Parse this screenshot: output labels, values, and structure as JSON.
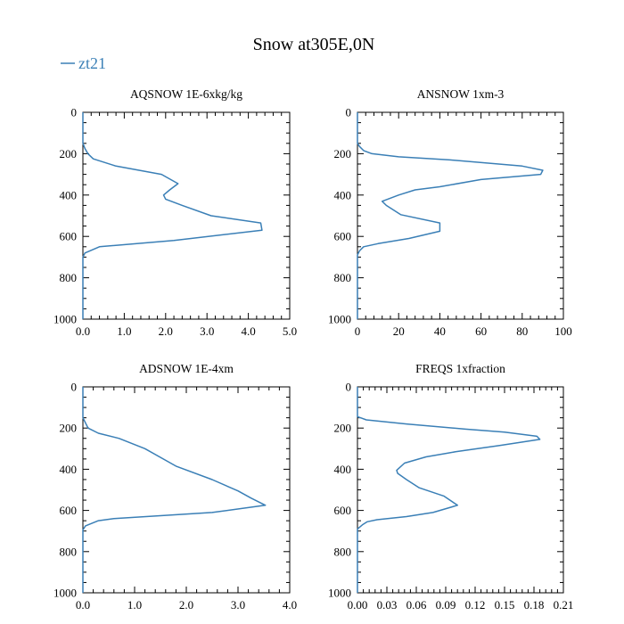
{
  "chart_data": {
    "title": "Snow at305E,0N",
    "series_name": "zt21",
    "line_color": "#3a7fb6",
    "axis_color": "#000000",
    "panels": [
      {
        "type": "line",
        "title": "AQSNOW  1E-6xkg/kg",
        "xlim": [
          0,
          5
        ],
        "xticks": [
          "0.0",
          "1.0",
          "2.0",
          "3.0",
          "4.0",
          "5.0"
        ],
        "ylim": [
          0,
          1000
        ],
        "yticks": [
          "0",
          "200",
          "400",
          "600",
          "800",
          "1000"
        ],
        "series": [
          {
            "name": "zt21",
            "points": [
              [
                0,
                0
              ],
              [
                0,
                150
              ],
              [
                0.05,
                175
              ],
              [
                0.12,
                200
              ],
              [
                0.25,
                225
              ],
              [
                0.8,
                260
              ],
              [
                1.9,
                300
              ],
              [
                2.3,
                345
              ],
              [
                2.1,
                375
              ],
              [
                1.95,
                400
              ],
              [
                2.0,
                420
              ],
              [
                2.4,
                450
              ],
              [
                3.1,
                500
              ],
              [
                4.3,
                535
              ],
              [
                4.33,
                570
              ],
              [
                2.2,
                620
              ],
              [
                0.4,
                650
              ],
              [
                0.05,
                680
              ],
              [
                0,
                700
              ],
              [
                0,
                1000
              ]
            ]
          }
        ]
      },
      {
        "type": "line",
        "title": "ANSNOW  1xm-3",
        "xlim": [
          0,
          100
        ],
        "xticks": [
          "0",
          "20",
          "40",
          "60",
          "80",
          "100"
        ],
        "ylim": [
          0,
          1000
        ],
        "yticks": [
          "0",
          "200",
          "400",
          "600",
          "800",
          "1000"
        ],
        "series": [
          {
            "name": "zt21",
            "points": [
              [
                0,
                0
              ],
              [
                0,
                150
              ],
              [
                1,
                165
              ],
              [
                3,
                185
              ],
              [
                7,
                200
              ],
              [
                20,
                215
              ],
              [
                45,
                230
              ],
              [
                80,
                260
              ],
              [
                90,
                280
              ],
              [
                89,
                300
              ],
              [
                60,
                325
              ],
              [
                40,
                360
              ],
              [
                28,
                375
              ],
              [
                20,
                400
              ],
              [
                12,
                430
              ],
              [
                14,
                450
              ],
              [
                21,
                495
              ],
              [
                40,
                535
              ],
              [
                40,
                575
              ],
              [
                25,
                610
              ],
              [
                10,
                635
              ],
              [
                3,
                650
              ],
              [
                1,
                670
              ],
              [
                0,
                690
              ],
              [
                0,
                1000
              ]
            ]
          }
        ]
      },
      {
        "type": "line",
        "title": "ADSNOW  1E-4xm",
        "xlim": [
          0,
          4
        ],
        "xticks": [
          "0.0",
          "1.0",
          "2.0",
          "3.0",
          "4.0"
        ],
        "ylim": [
          0,
          1000
        ],
        "yticks": [
          "0",
          "200",
          "400",
          "600",
          "800",
          "1000"
        ],
        "series": [
          {
            "name": "zt21",
            "points": [
              [
                0,
                0
              ],
              [
                0,
                150
              ],
              [
                0.05,
                175
              ],
              [
                0.1,
                200
              ],
              [
                0.3,
                225
              ],
              [
                0.7,
                250
              ],
              [
                1.2,
                300
              ],
              [
                1.8,
                385
              ],
              [
                2.5,
                450
              ],
              [
                3.0,
                505
              ],
              [
                3.25,
                540
              ],
              [
                3.53,
                575
              ],
              [
                2.5,
                610
              ],
              [
                0.6,
                640
              ],
              [
                0.3,
                650
              ],
              [
                0.05,
                675
              ],
              [
                0,
                695
              ],
              [
                0,
                1000
              ]
            ]
          }
        ]
      },
      {
        "type": "line",
        "title": "FREQS  1xfraction",
        "xlim": [
          0,
          0.21
        ],
        "xticks": [
          "0.00",
          "0.03",
          "0.06",
          "0.09",
          "0.12",
          "0.15",
          "0.18",
          "0.21"
        ],
        "ylim": [
          0,
          1000
        ],
        "yticks": [
          "0",
          "200",
          "400",
          "600",
          "800",
          "1000"
        ],
        "series": [
          {
            "name": "zt21",
            "points": [
              [
                0,
                0
              ],
              [
                0,
                145
              ],
              [
                0.003,
                150
              ],
              [
                0.009,
                160
              ],
              [
                0.05,
                180
              ],
              [
                0.11,
                205
              ],
              [
                0.15,
                220
              ],
              [
                0.183,
                240
              ],
              [
                0.186,
                255
              ],
              [
                0.145,
                285
              ],
              [
                0.1,
                315
              ],
              [
                0.07,
                340
              ],
              [
                0.048,
                370
              ],
              [
                0.04,
                405
              ],
              [
                0.041,
                420
              ],
              [
                0.05,
                450
              ],
              [
                0.063,
                490
              ],
              [
                0.088,
                530
              ],
              [
                0.102,
                575
              ],
              [
                0.077,
                610
              ],
              [
                0.05,
                630
              ],
              [
                0.02,
                645
              ],
              [
                0.01,
                655
              ],
              [
                0.005,
                670
              ],
              [
                0,
                690
              ],
              [
                0,
                1000
              ]
            ]
          }
        ]
      }
    ]
  }
}
